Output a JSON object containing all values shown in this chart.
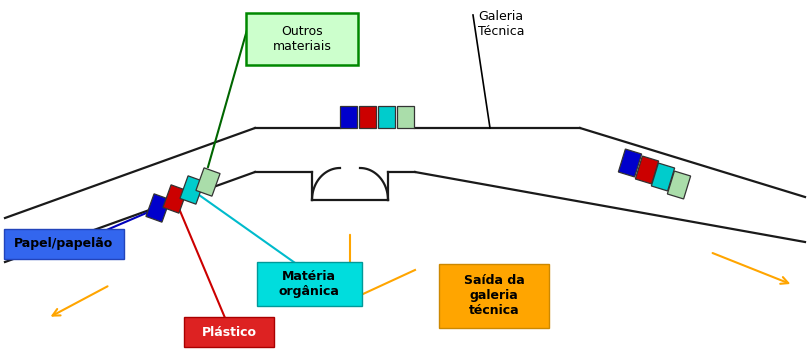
{
  "bg_color": "#ffffff",
  "tc": "#1a1a1a",
  "lw": 1.6,
  "orange": "#FFA500",
  "green_line": "#006600",
  "red_line": "#cc0000",
  "cyan_line": "#00bbcc",
  "blue_line": "#0000bb",
  "box_blue": "#0000cc",
  "box_red": "#cc0000",
  "box_cyan": "#00cccc",
  "box_lgreen": "#aaddaa",
  "outros_bg": "#ccffcc",
  "outros_border": "#008800",
  "papel_bg": "#3366ee",
  "materia_bg": "#00dddd",
  "plastico_bg": "#dd2222",
  "saida_bg": "#FFA500",
  "label_outros": "Outros\nmateriais",
  "label_papel": "Papel/papelão",
  "label_materia": "Matéria\norgânica",
  "label_plastico": "Plástico",
  "label_saida": "Saída da\ngaleria\ntécnica",
  "label_galeria": "Galeria\nTécnica"
}
